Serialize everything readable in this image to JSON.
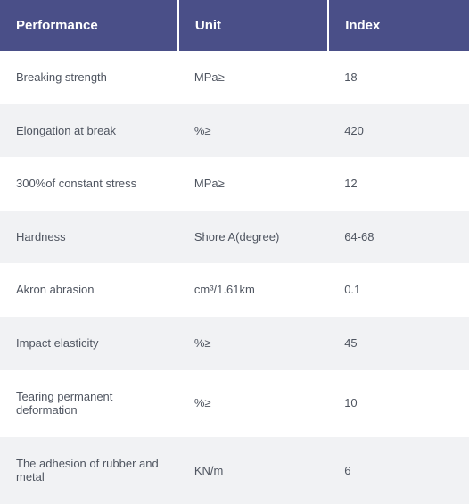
{
  "table": {
    "header_bg": "#4a4f88",
    "header_fg": "#ffffff",
    "row_even_bg": "#ffffff",
    "row_odd_bg": "#f1f2f4",
    "cell_fg": "#4f5560",
    "columns": [
      {
        "key": "performance",
        "label": "Performance"
      },
      {
        "key": "unit",
        "label": "Unit"
      },
      {
        "key": "index",
        "label": "Index"
      }
    ],
    "rows": [
      {
        "performance": "Breaking strength",
        "unit": "MPa≥",
        "index": "18"
      },
      {
        "performance": "Elongation at break",
        "unit": "%≥",
        "index": "420"
      },
      {
        "performance": "300%of constant stress",
        "unit": "MPa≥",
        "index": "12"
      },
      {
        "performance": "Hardness",
        "unit": "Shore A(degree)",
        "index": "64-68"
      },
      {
        "performance": "Akron abrasion",
        "unit": "cm³/1.61km",
        "index": "0.1"
      },
      {
        "performance": "Impact elasticity",
        "unit": "%≥",
        "index": "45"
      },
      {
        "performance": "Tearing permanent deformation",
        "unit": "%≥",
        "index": "10"
      },
      {
        "performance": "The adhesion of rubber and metal",
        "unit": "KN/m",
        "index": "6"
      }
    ]
  }
}
